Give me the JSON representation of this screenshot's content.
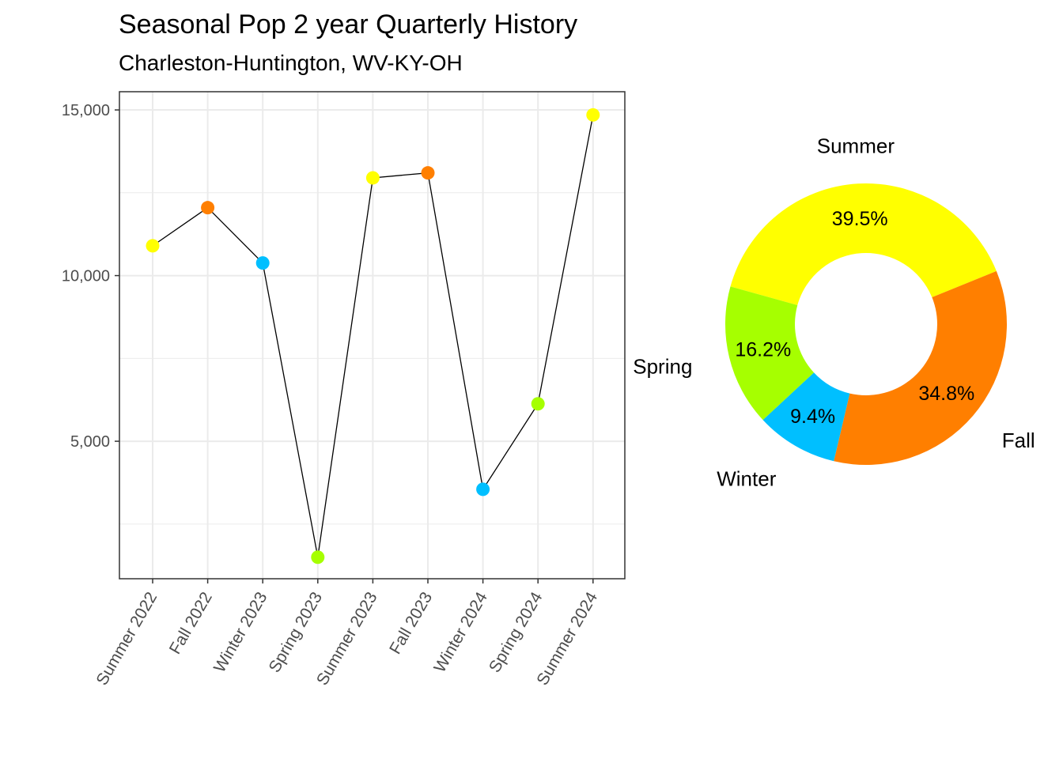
{
  "chart_data": [
    {
      "type": "line",
      "title": "Seasonal Pop 2 year Quarterly History",
      "subtitle": "Charleston-Huntington, WV-KY-OH",
      "xlabel": "",
      "ylabel": "",
      "categories": [
        "Summer 2022",
        "Fall 2022",
        "Winter 2023",
        "Spring 2023",
        "Summer 2023",
        "Fall 2023",
        "Winter 2024",
        "Spring 2024",
        "Summer 2024"
      ],
      "values": [
        10900,
        12050,
        10380,
        1500,
        12950,
        13100,
        3550,
        6130,
        14850
      ],
      "seasons": [
        "Summer",
        "Fall",
        "Winter",
        "Spring",
        "Summer",
        "Fall",
        "Winter",
        "Spring",
        "Summer"
      ],
      "ylim": [
        850,
        15550
      ],
      "yticks": [
        5000,
        10000,
        15000
      ],
      "ytick_labels": [
        "5,000",
        "10,000",
        "15,000"
      ],
      "grid": true,
      "line_color": "#000000"
    },
    {
      "type": "pie",
      "donut": true,
      "slices": [
        {
          "label": "Summer",
          "value": 39.5,
          "pct_label": "39.5%",
          "color": "#FFFF00"
        },
        {
          "label": "Fall",
          "value": 34.8,
          "pct_label": "34.8%",
          "color": "#FF7F00"
        },
        {
          "label": "Winter",
          "value": 9.4,
          "pct_label": "9.4%",
          "color": "#00BFFF"
        },
        {
          "label": "Spring",
          "value": 16.2,
          "pct_label": "16.2%",
          "color": "#A6FF00"
        }
      ]
    }
  ],
  "season_colors": {
    "Summer": "#FFFF00",
    "Fall": "#FF7F00",
    "Winter": "#00BFFF",
    "Spring": "#A6FF00"
  }
}
